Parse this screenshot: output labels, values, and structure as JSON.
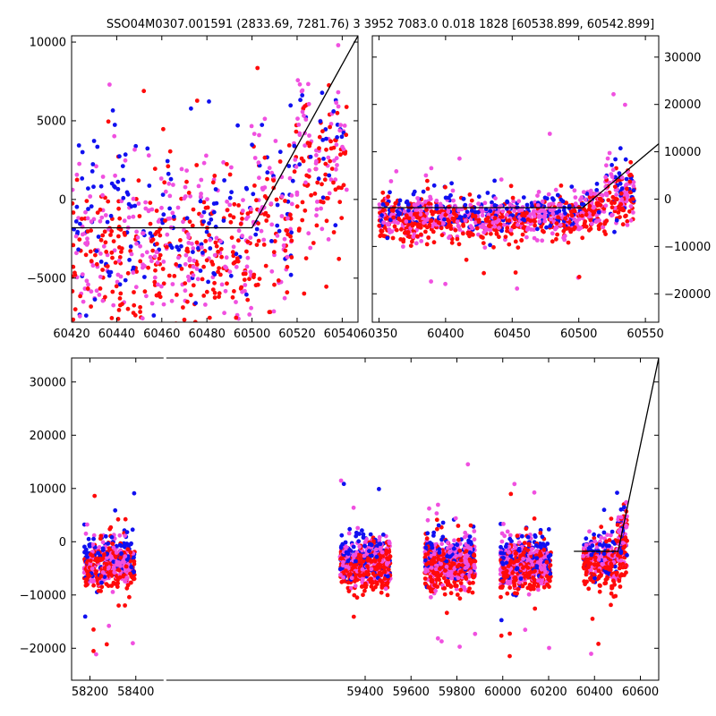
{
  "title": "SSO04M0307.001591 (2833.69, 7281.76) 3 3952 7083.0 0.018 1828 [60538.899, 60542.899]",
  "colors": {
    "blue": "#1010f0",
    "red": "#ff0a0a",
    "pink": "#f050e0",
    "fit": "#000000",
    "axis": "#000000"
  },
  "chart_data": [
    {
      "id": "zoom-recent",
      "type": "scatter",
      "xlim": [
        60420,
        60547
      ],
      "ylim": [
        -7800,
        10400
      ],
      "x_ticks": [
        60420,
        60440,
        60460,
        60480,
        60500,
        60520,
        60540
      ],
      "y_ticks": [
        -5000,
        0,
        5000,
        10000
      ],
      "y_axis_side": "left",
      "fit_line": [
        [
          60420,
          -1800
        ],
        [
          60500,
          -1800
        ],
        [
          60547,
          10400
        ]
      ],
      "clusters": [
        {
          "x": [
            60420,
            60500
          ],
          "median": -2600,
          "spread": 2600,
          "n": 620
        },
        {
          "x": [
            60500,
            60518
          ],
          "median": -800,
          "spread": 2600,
          "n": 130
        },
        {
          "x": [
            60518,
            60542
          ],
          "median": 3200,
          "spread": 2400,
          "n": 170
        }
      ]
    },
    {
      "id": "season-view",
      "type": "scatter",
      "xlim": [
        60345,
        60560
      ],
      "ylim": [
        -26000,
        34500
      ],
      "x_ticks": [
        60350,
        60400,
        60450,
        60500,
        60550
      ],
      "y_ticks": [
        -20000,
        -10000,
        0,
        10000,
        20000,
        30000
      ],
      "y_axis_side": "right",
      "fit_line": [
        [
          60345,
          -1800
        ],
        [
          60503,
          -1800
        ],
        [
          60560,
          11700
        ]
      ],
      "clusters": [
        {
          "x": [
            60350,
            60500
          ],
          "median": -3700,
          "spread": 2100,
          "n": 950
        },
        {
          "x": [
            60500,
            60520
          ],
          "median": -2200,
          "spread": 2400,
          "n": 130
        },
        {
          "x": [
            60520,
            60542
          ],
          "median": 1500,
          "spread": 3200,
          "n": 150
        }
      ]
    },
    {
      "id": "full-history",
      "type": "scatter",
      "xlim": [
        58120,
        60680
      ],
      "ylim": [
        -26000,
        34500
      ],
      "x_ticks": [
        58200,
        58400,
        59400,
        59600,
        59800,
        60000,
        60200,
        60400,
        60600
      ],
      "y_ticks": [
        -20000,
        -10000,
        0,
        10000,
        20000,
        30000
      ],
      "y_axis_side": "left",
      "axis_break_x": 58525,
      "fit_line": [
        [
          60310,
          -1800
        ],
        [
          60503,
          -1800
        ],
        [
          60680,
          34500
        ]
      ],
      "clusters": [
        {
          "x": [
            58175,
            58395
          ],
          "median": -3800,
          "spread": 2200,
          "n": 500
        },
        {
          "x": [
            59290,
            59510
          ],
          "median": -3800,
          "spread": 2100,
          "n": 650
        },
        {
          "x": [
            59660,
            59880
          ],
          "median": -3800,
          "spread": 2200,
          "n": 650
        },
        {
          "x": [
            59990,
            60210
          ],
          "median": -4000,
          "spread": 2300,
          "n": 650
        },
        {
          "x": [
            60350,
            60500
          ],
          "median": -3700,
          "spread": 2200,
          "n": 300
        },
        {
          "x": [
            60500,
            60542
          ],
          "median": 500,
          "spread": 3000,
          "n": 140
        }
      ]
    }
  ]
}
